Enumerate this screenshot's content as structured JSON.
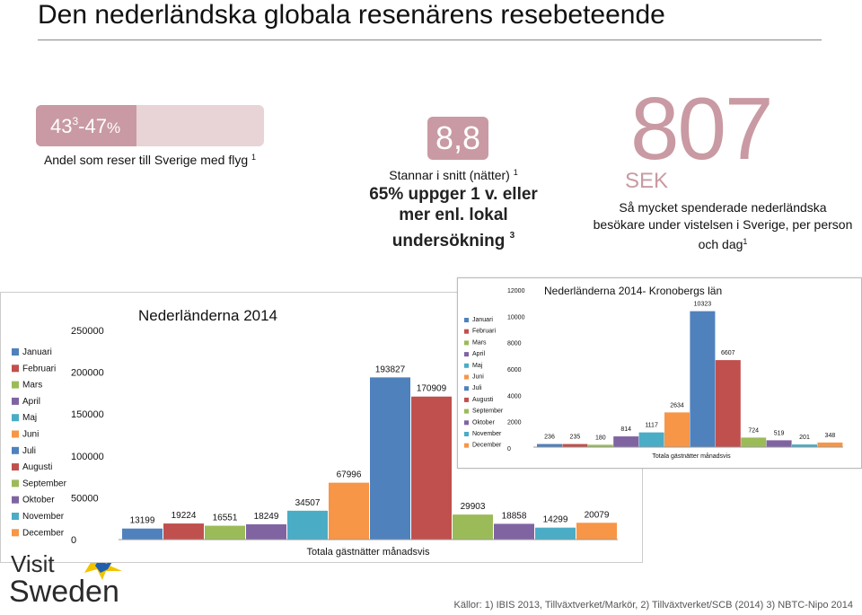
{
  "header": {
    "title": "Den nederländska globala resenärens resebeteende"
  },
  "stats": {
    "share": {
      "range": "43",
      "range_sup": "3",
      "range_rest": "-47",
      "percent_sign": "%",
      "caption": "Andel som reser till Sverige med flyg",
      "caption_sup": "1",
      "fill_fraction": 0.44
    },
    "nights": {
      "value": "8,8",
      "caption": "Stannar i snitt (nätter)",
      "caption_sup": "1",
      "note": "65% uppger 1 v. eller mer enl. lokal undersökning",
      "note_sup": "3"
    },
    "spend": {
      "value": "807",
      "currency": "SEK",
      "caption": "Så mycket spenderade nederländska besökare under vistelsen i Sverige, per person och dag",
      "caption_sup": "1"
    }
  },
  "brand": {
    "accent": "#c99aa3",
    "accent_light": "#e8d3d7"
  },
  "months": [
    "Januari",
    "Februari",
    "Mars",
    "April",
    "Maj",
    "Juni",
    "Juli",
    "Augusti",
    "September",
    "Oktober",
    "November",
    "December"
  ],
  "colors": [
    "#4f81bd",
    "#c0504d",
    "#9bbb59",
    "#8064a2",
    "#4bacc6",
    "#f79646",
    "#4f81bd",
    "#c0504d",
    "#9bbb59",
    "#8064a2",
    "#4bacc6",
    "#f79646"
  ],
  "chart_data": [
    {
      "type": "bar",
      "title": "Nederländerna 2014",
      "xlabel": "Totala gästnätter månadsvis",
      "ylabel": "",
      "categories": [
        "Januari",
        "Februari",
        "Mars",
        "April",
        "Maj",
        "Juni",
        "Juli",
        "Augusti",
        "September",
        "Oktober",
        "November",
        "December"
      ],
      "values": [
        13199,
        19224,
        16551,
        18249,
        34507,
        67996,
        193827,
        170909,
        29903,
        18858,
        14299,
        20079
      ],
      "yticks": [
        "250000",
        "200000",
        "150000",
        "100000",
        "50000",
        "0"
      ],
      "ylim": [
        0,
        250000
      ],
      "grid": false,
      "legend": "left"
    },
    {
      "type": "bar",
      "title": "Nederländerna 2014- Kronobergs län",
      "xlabel": "Totala gästnätter månadsvis",
      "ylabel": "",
      "categories": [
        "Januari",
        "Februari",
        "Mars",
        "April",
        "Maj",
        "Juni",
        "Juli",
        "Augusti",
        "September",
        "Oktober",
        "November",
        "December"
      ],
      "values": [
        236,
        235,
        180,
        814,
        1117,
        2634,
        10323,
        6607,
        724,
        519,
        201,
        348
      ],
      "yticks": [
        "12000",
        "10000",
        "8000",
        "6000",
        "4000",
        "2000",
        "0"
      ],
      "ylim": [
        0,
        12000
      ],
      "grid": false,
      "legend": "left"
    }
  ],
  "logo": {
    "line1": "Visit",
    "line2": "Sweden"
  },
  "footer": {
    "sources": "Källor: 1) IBIS 2013, Tillväxtverket/Markör,  2) Tillväxtverket/SCB (2014) 3) NBTC-Nipo 2014"
  }
}
